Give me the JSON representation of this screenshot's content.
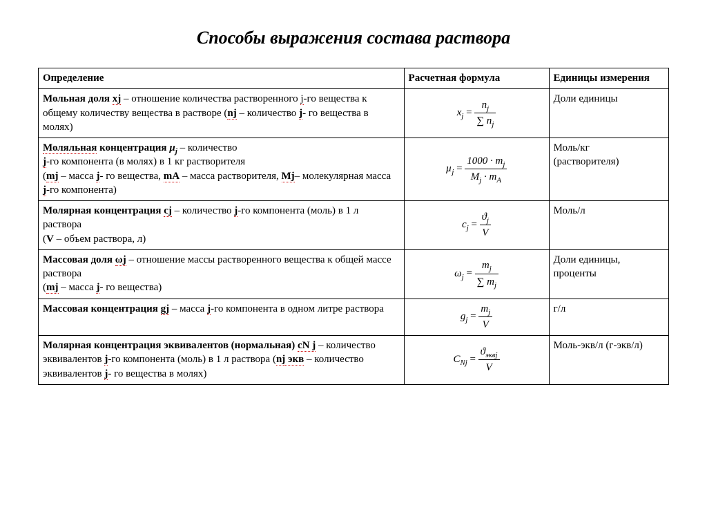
{
  "title": "Способы выражения состава раствора",
  "columns": {
    "c1": "Определение",
    "c2": "Расчетная формула",
    "c3": "Единицы измерения"
  },
  "rows": {
    "r1": {
      "term": "Мольная доля",
      "sym": "xj",
      "def1": " – отношение количества растворенного ",
      "j1": "j",
      "def2": "-го вещества к общему количеству вещества в растворе (",
      "nj": "nj",
      "def3": " – количество ",
      "j2": "j",
      "def4": "- го вещества в молях)",
      "f_lhs": "x",
      "f_lhs_sub": "j",
      "f_num": "n",
      "f_num_sub": "j",
      "f_den_sig": "∑ n",
      "f_den_sub": "j",
      "units": "Доли единицы"
    },
    "r2": {
      "term": "Моляльная",
      "term2": " концентрация ",
      "sym": "µ",
      "sym_sub": "j",
      "def1": " – количество",
      "j1": "j",
      "def2": "-го компонента (в молях) в 1 кг растворителя",
      "line3a": "(",
      "mj": "mj",
      "line3b": " – масса ",
      "j2": "j",
      "line3c": "- го вещества, ",
      "mA": "mA",
      "line3d": " – масса растворителя, ",
      "Mj": "Mj",
      "line3e": "– молекулярная масса ",
      "j3": "j",
      "line3f": "-го компонента)",
      "f_lhs": "µ",
      "f_lhs_sub": "j",
      "f_num": "1000 · m",
      "f_num_sub": "j",
      "f_den": "M",
      "f_den_sub1": "j",
      "f_den_mid": " · m",
      "f_den_sub2": "A",
      "units1": "Моль/кг",
      "units2": "(растворителя)"
    },
    "r3": {
      "term": "Молярная концентрация ",
      "sym": "cj",
      "def1": " – количество ",
      "j1": "j",
      "def2": "-го компонента (моль) в 1 л раствора",
      "line2a": "(",
      "V": "V",
      "line2b": " – объем раствора, л)",
      "f_lhs": "c",
      "f_lhs_sub": "j",
      "f_num": "ϑ",
      "f_num_sub": "j",
      "f_den": "V",
      "units": "Моль/л"
    },
    "r4": {
      "term": "Массовая доля ",
      "sym": "ωj",
      "def1": " – отношение массы растворенного вещества к общей массе раствора",
      "line2a": "(",
      "mj": "mj",
      "line2b": " – масса ",
      "j1": "j",
      "line2c": "- го вещества)",
      "f_lhs": "ω",
      "f_lhs_sub": "j",
      "f_num": "m",
      "f_num_sub": "j",
      "f_den_sig": "∑ m",
      "f_den_sub": "j",
      "units": "Доли единицы, проценты"
    },
    "r5": {
      "term": "Массовая концентрация ",
      "sym": "gj",
      "def1": " – масса ",
      "j1": "j",
      "def2": "-го компонента в одном литре раствора",
      "f_lhs": "g",
      "f_lhs_sub": "j",
      "f_num": "m",
      "f_num_sub": "j",
      "f_den": "V",
      "units": "г/л"
    },
    "r6": {
      "term": "Молярная концентрация эквивалентов (нормальная) ",
      "sym": "cN j",
      "def1": " – количество эквивалентов ",
      "j1": "j",
      "def2": "-го компонента (моль) в 1 л раствора (",
      "nj": "nj",
      "ekv": " экв",
      "def3": " – количество эквивалентов ",
      "j2": "j",
      "def4": "- го вещества в молях)",
      "f_lhs": "C",
      "f_lhs_sub": "Nj",
      "f_num": "ϑ",
      "f_num_sub": "эквj",
      "f_den": "V",
      "units": "Моль-экв/л (г-экв/л)"
    }
  }
}
